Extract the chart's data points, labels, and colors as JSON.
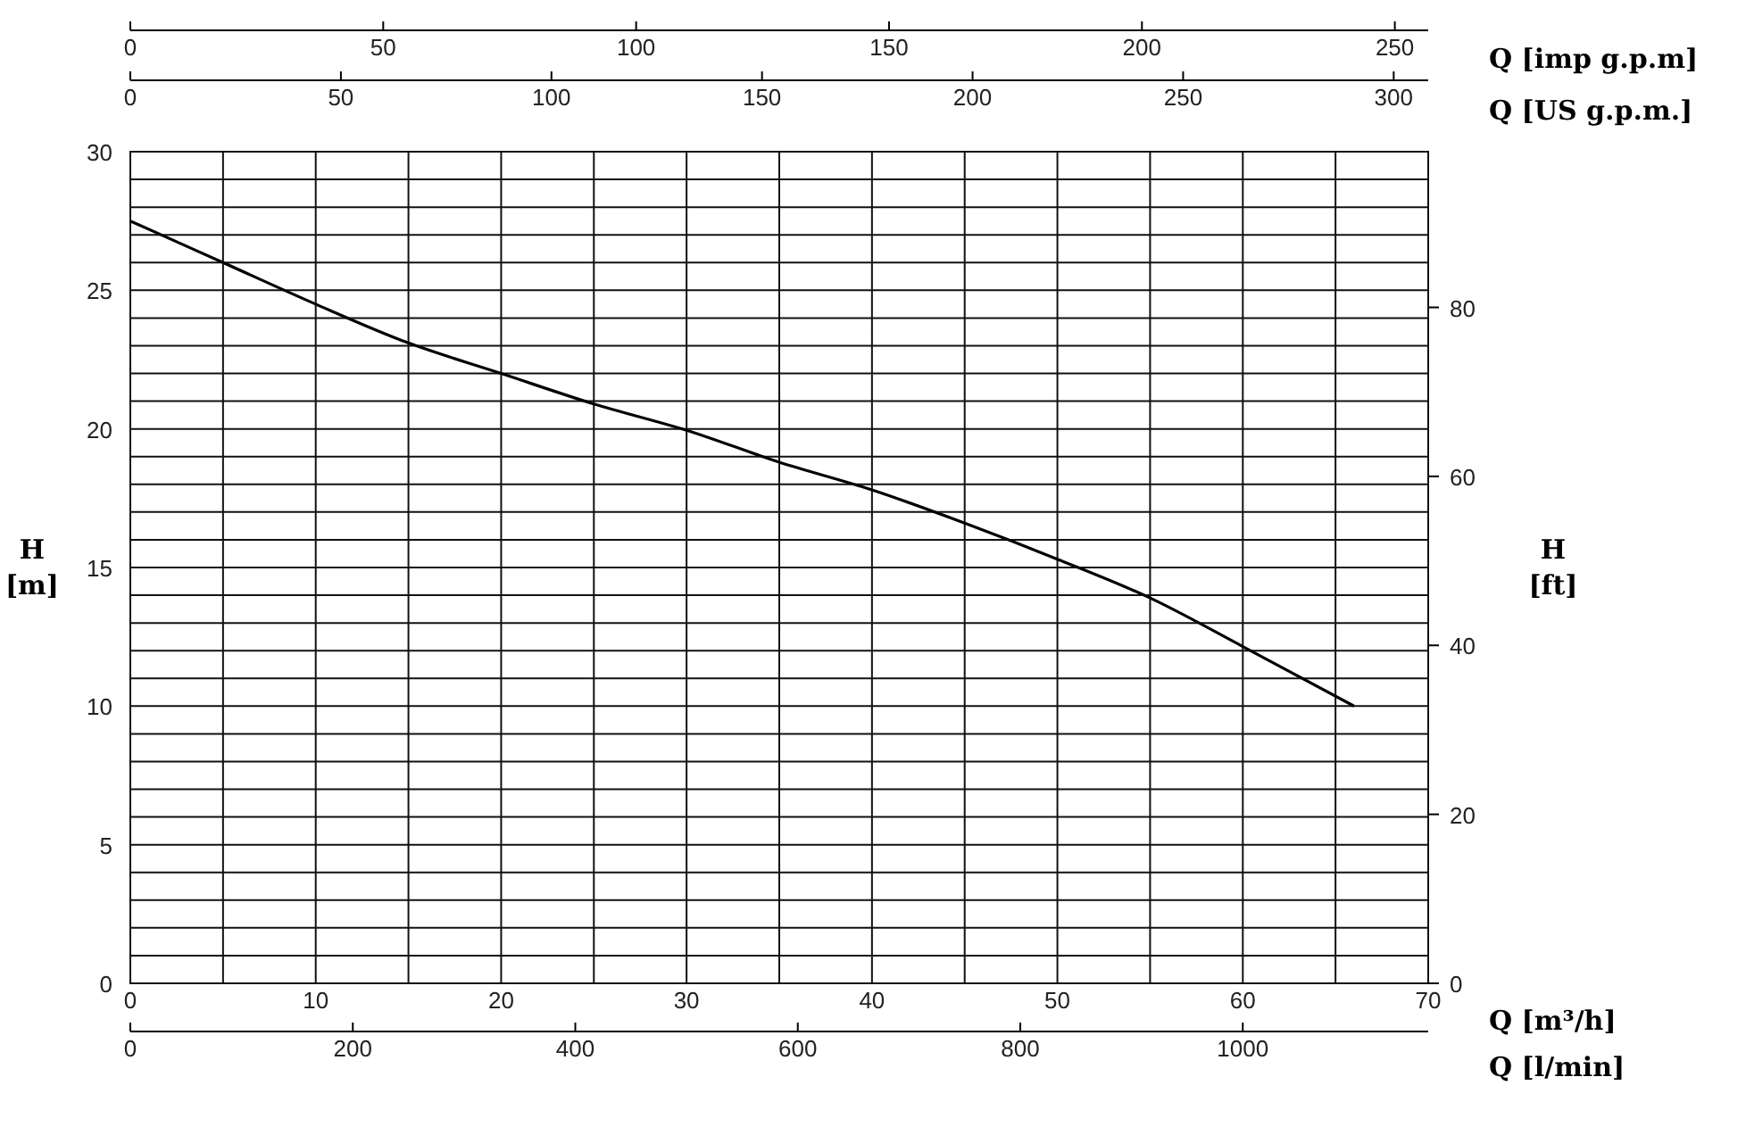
{
  "chart_data": [
    {
      "type": "line",
      "xlabel": "Q [m³/h]",
      "ylabel": "H [m]",
      "y2label": "H [ft]",
      "x2label": "Q [US g.p.m.]",
      "xlim": [
        0,
        70
      ],
      "xticks": [
        0,
        {
          "value": 5,
          "label": null
        },
        10,
        {
          "value": 15,
          "label": null
        },
        20,
        {
          "value": 25,
          "label": null
        },
        30,
        {
          "value": 35,
          "label": null
        },
        40,
        {
          "value": 45,
          "label": null
        },
        50,
        {
          "value": 55,
          "label": null
        },
        60,
        {
          "value": 65,
          "label": null
        },
        70
      ],
      "ylim": [
        0,
        30
      ],
      "yticks": [
        0,
        {
          "value": 1,
          "label": null
        },
        {
          "value": 2,
          "label": null
        },
        {
          "value": 3,
          "label": null
        },
        {
          "value": 4,
          "label": null
        },
        5,
        {
          "value": 6,
          "label": null
        },
        {
          "value": 7,
          "label": null
        },
        {
          "value": 8,
          "label": null
        },
        {
          "value": 9,
          "label": null
        },
        10,
        {
          "value": 11,
          "label": null
        },
        {
          "value": 12,
          "label": null
        },
        {
          "value": 13,
          "label": null
        },
        {
          "value": 14,
          "label": null
        },
        15,
        {
          "value": 16,
          "label": null
        },
        {
          "value": 17,
          "label": null
        },
        {
          "value": 18,
          "label": null
        },
        {
          "value": 19,
          "label": null
        },
        20,
        {
          "value": 21,
          "label": null
        },
        {
          "value": 22,
          "label": null
        },
        {
          "value": 23,
          "label": null
        },
        {
          "value": 24,
          "label": null
        },
        25,
        {
          "value": 26,
          "label": null
        },
        {
          "value": 27,
          "label": null
        },
        {
          "value": 28,
          "label": null
        },
        {
          "value": 29,
          "label": null
        },
        30
      ],
      "y2lim": [
        0,
        98.43
      ],
      "y2ticks": [
        0,
        20,
        40,
        60,
        80
      ],
      "x2lim": [
        0,
        308.2
      ],
      "x2ticks": [
        0,
        50,
        100,
        150,
        200,
        250,
        300
      ],
      "grid": true,
      "line_style": "solid",
      "marker": "none",
      "series": [
        {
          "color": "#000000",
          "x": [
            0,
            5,
            10,
            15,
            20,
            25,
            30,
            35,
            40,
            45,
            50,
            55,
            60,
            66
          ],
          "values": [
            27.5,
            26.0,
            24.5,
            23.1,
            22.0,
            20.9,
            19.95,
            18.8,
            17.8,
            16.6,
            15.3,
            13.9,
            12.15,
            10.0
          ]
        }
      ]
    },
    {
      "type": "line",
      "xlabel": "Q [l/min]",
      "x2label": "Q [imp g.p.m]",
      "xlim": [
        0,
        1166.7
      ],
      "xticks": [
        0,
        200,
        400,
        600,
        800,
        1000
      ],
      "x2lim": [
        0,
        256.6
      ],
      "x2ticks": [
        0,
        50,
        100,
        150,
        200,
        250
      ],
      "ylim": [
        0,
        30
      ],
      "tick_labels": "x"
    }
  ]
}
